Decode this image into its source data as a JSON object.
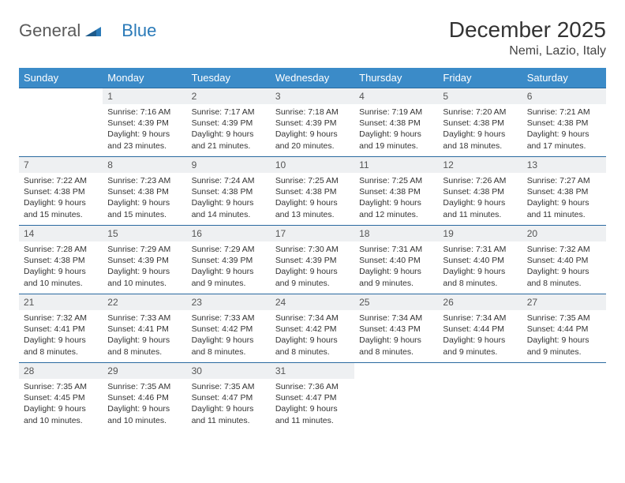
{
  "logo": {
    "part1": "General",
    "part2": "Blue"
  },
  "title": "December 2025",
  "location": "Nemi, Lazio, Italy",
  "colors": {
    "header_bg": "#3b8bc8",
    "header_text": "#ffffff",
    "daynum_bg": "#eef0f2",
    "rule": "#2a6aa0",
    "text": "#333333",
    "logo_gray": "#5a5a5a",
    "logo_blue": "#2a7ab8"
  },
  "day_headers": [
    "Sunday",
    "Monday",
    "Tuesday",
    "Wednesday",
    "Thursday",
    "Friday",
    "Saturday"
  ],
  "first_weekday_offset": 1,
  "days": [
    {
      "n": "1",
      "sunrise": "Sunrise: 7:16 AM",
      "sunset": "Sunset: 4:39 PM",
      "daylight": "Daylight: 9 hours and 23 minutes."
    },
    {
      "n": "2",
      "sunrise": "Sunrise: 7:17 AM",
      "sunset": "Sunset: 4:39 PM",
      "daylight": "Daylight: 9 hours and 21 minutes."
    },
    {
      "n": "3",
      "sunrise": "Sunrise: 7:18 AM",
      "sunset": "Sunset: 4:39 PM",
      "daylight": "Daylight: 9 hours and 20 minutes."
    },
    {
      "n": "4",
      "sunrise": "Sunrise: 7:19 AM",
      "sunset": "Sunset: 4:38 PM",
      "daylight": "Daylight: 9 hours and 19 minutes."
    },
    {
      "n": "5",
      "sunrise": "Sunrise: 7:20 AM",
      "sunset": "Sunset: 4:38 PM",
      "daylight": "Daylight: 9 hours and 18 minutes."
    },
    {
      "n": "6",
      "sunrise": "Sunrise: 7:21 AM",
      "sunset": "Sunset: 4:38 PM",
      "daylight": "Daylight: 9 hours and 17 minutes."
    },
    {
      "n": "7",
      "sunrise": "Sunrise: 7:22 AM",
      "sunset": "Sunset: 4:38 PM",
      "daylight": "Daylight: 9 hours and 15 minutes."
    },
    {
      "n": "8",
      "sunrise": "Sunrise: 7:23 AM",
      "sunset": "Sunset: 4:38 PM",
      "daylight": "Daylight: 9 hours and 15 minutes."
    },
    {
      "n": "9",
      "sunrise": "Sunrise: 7:24 AM",
      "sunset": "Sunset: 4:38 PM",
      "daylight": "Daylight: 9 hours and 14 minutes."
    },
    {
      "n": "10",
      "sunrise": "Sunrise: 7:25 AM",
      "sunset": "Sunset: 4:38 PM",
      "daylight": "Daylight: 9 hours and 13 minutes."
    },
    {
      "n": "11",
      "sunrise": "Sunrise: 7:25 AM",
      "sunset": "Sunset: 4:38 PM",
      "daylight": "Daylight: 9 hours and 12 minutes."
    },
    {
      "n": "12",
      "sunrise": "Sunrise: 7:26 AM",
      "sunset": "Sunset: 4:38 PM",
      "daylight": "Daylight: 9 hours and 11 minutes."
    },
    {
      "n": "13",
      "sunrise": "Sunrise: 7:27 AM",
      "sunset": "Sunset: 4:38 PM",
      "daylight": "Daylight: 9 hours and 11 minutes."
    },
    {
      "n": "14",
      "sunrise": "Sunrise: 7:28 AM",
      "sunset": "Sunset: 4:38 PM",
      "daylight": "Daylight: 9 hours and 10 minutes."
    },
    {
      "n": "15",
      "sunrise": "Sunrise: 7:29 AM",
      "sunset": "Sunset: 4:39 PM",
      "daylight": "Daylight: 9 hours and 10 minutes."
    },
    {
      "n": "16",
      "sunrise": "Sunrise: 7:29 AM",
      "sunset": "Sunset: 4:39 PM",
      "daylight": "Daylight: 9 hours and 9 minutes."
    },
    {
      "n": "17",
      "sunrise": "Sunrise: 7:30 AM",
      "sunset": "Sunset: 4:39 PM",
      "daylight": "Daylight: 9 hours and 9 minutes."
    },
    {
      "n": "18",
      "sunrise": "Sunrise: 7:31 AM",
      "sunset": "Sunset: 4:40 PM",
      "daylight": "Daylight: 9 hours and 9 minutes."
    },
    {
      "n": "19",
      "sunrise": "Sunrise: 7:31 AM",
      "sunset": "Sunset: 4:40 PM",
      "daylight": "Daylight: 9 hours and 8 minutes."
    },
    {
      "n": "20",
      "sunrise": "Sunrise: 7:32 AM",
      "sunset": "Sunset: 4:40 PM",
      "daylight": "Daylight: 9 hours and 8 minutes."
    },
    {
      "n": "21",
      "sunrise": "Sunrise: 7:32 AM",
      "sunset": "Sunset: 4:41 PM",
      "daylight": "Daylight: 9 hours and 8 minutes."
    },
    {
      "n": "22",
      "sunrise": "Sunrise: 7:33 AM",
      "sunset": "Sunset: 4:41 PM",
      "daylight": "Daylight: 9 hours and 8 minutes."
    },
    {
      "n": "23",
      "sunrise": "Sunrise: 7:33 AM",
      "sunset": "Sunset: 4:42 PM",
      "daylight": "Daylight: 9 hours and 8 minutes."
    },
    {
      "n": "24",
      "sunrise": "Sunrise: 7:34 AM",
      "sunset": "Sunset: 4:42 PM",
      "daylight": "Daylight: 9 hours and 8 minutes."
    },
    {
      "n": "25",
      "sunrise": "Sunrise: 7:34 AM",
      "sunset": "Sunset: 4:43 PM",
      "daylight": "Daylight: 9 hours and 8 minutes."
    },
    {
      "n": "26",
      "sunrise": "Sunrise: 7:34 AM",
      "sunset": "Sunset: 4:44 PM",
      "daylight": "Daylight: 9 hours and 9 minutes."
    },
    {
      "n": "27",
      "sunrise": "Sunrise: 7:35 AM",
      "sunset": "Sunset: 4:44 PM",
      "daylight": "Daylight: 9 hours and 9 minutes."
    },
    {
      "n": "28",
      "sunrise": "Sunrise: 7:35 AM",
      "sunset": "Sunset: 4:45 PM",
      "daylight": "Daylight: 9 hours and 10 minutes."
    },
    {
      "n": "29",
      "sunrise": "Sunrise: 7:35 AM",
      "sunset": "Sunset: 4:46 PM",
      "daylight": "Daylight: 9 hours and 10 minutes."
    },
    {
      "n": "30",
      "sunrise": "Sunrise: 7:35 AM",
      "sunset": "Sunset: 4:47 PM",
      "daylight": "Daylight: 9 hours and 11 minutes."
    },
    {
      "n": "31",
      "sunrise": "Sunrise: 7:36 AM",
      "sunset": "Sunset: 4:47 PM",
      "daylight": "Daylight: 9 hours and 11 minutes."
    }
  ]
}
